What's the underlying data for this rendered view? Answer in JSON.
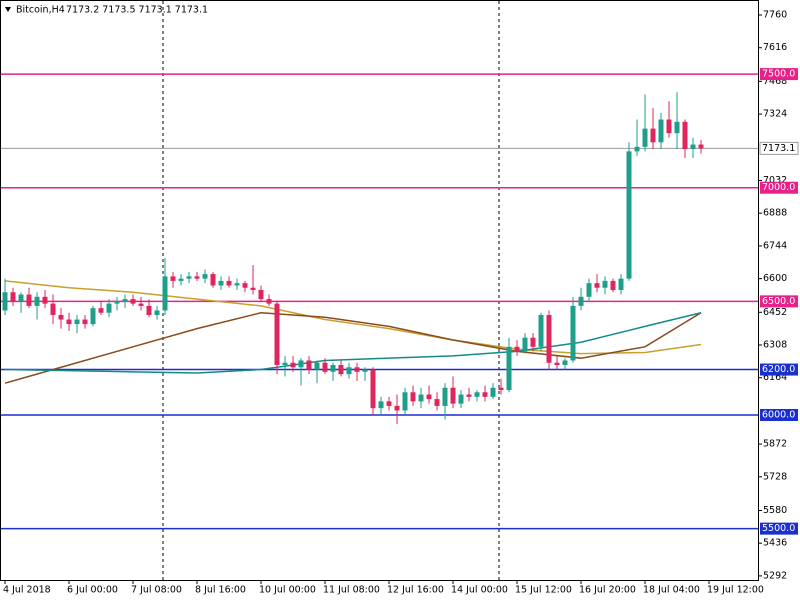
{
  "chart_data": {
    "type": "candlestick",
    "title": "Bitcoin,H4",
    "quote": "7173.2 7173.5 7173.1 7173.1",
    "up_color": "#1f9e8a",
    "down_color": "#e0245e",
    "candles": [
      [
        6460,
        6600,
        6440,
        6540
      ],
      [
        6540,
        6560,
        6480,
        6500
      ],
      [
        6500,
        6540,
        6450,
        6530
      ],
      [
        6530,
        6560,
        6470,
        6480
      ],
      [
        6480,
        6540,
        6420,
        6520
      ],
      [
        6520,
        6550,
        6470,
        6490
      ],
      [
        6490,
        6530,
        6400,
        6440
      ],
      [
        6440,
        6470,
        6380,
        6420
      ],
      [
        6420,
        6450,
        6370,
        6400
      ],
      [
        6400,
        6440,
        6360,
        6420
      ],
      [
        6420,
        6440,
        6380,
        6400
      ],
      [
        6400,
        6480,
        6390,
        6470
      ],
      [
        6470,
        6500,
        6440,
        6450
      ],
      [
        6450,
        6510,
        6430,
        6490
      ],
      [
        6490,
        6520,
        6460,
        6500
      ],
      [
        6500,
        6530,
        6470,
        6510
      ],
      [
        6510,
        6530,
        6480,
        6490
      ],
      [
        6490,
        6520,
        6460,
        6480
      ],
      [
        6480,
        6510,
        6430,
        6440
      ],
      [
        6440,
        6480,
        6420,
        6460
      ],
      [
        6460,
        6690,
        6440,
        6610
      ],
      [
        6610,
        6630,
        6560,
        6590
      ],
      [
        6590,
        6620,
        6570,
        6600
      ],
      [
        6600,
        6630,
        6580,
        6610
      ],
      [
        6610,
        6630,
        6590,
        6600
      ],
      [
        6600,
        6640,
        6580,
        6620
      ],
      [
        6620,
        6630,
        6560,
        6570
      ],
      [
        6570,
        6610,
        6550,
        6590
      ],
      [
        6590,
        6610,
        6560,
        6570
      ],
      [
        6570,
        6600,
        6550,
        6580
      ],
      [
        6580,
        6590,
        6540,
        6560
      ],
      [
        6560,
        6660,
        6530,
        6550
      ],
      [
        6550,
        6570,
        6500,
        6510
      ],
      [
        6510,
        6530,
        6480,
        6490
      ],
      [
        6490,
        6500,
        6180,
        6220
      ],
      [
        6220,
        6260,
        6170,
        6230
      ],
      [
        6230,
        6260,
        6190,
        6210
      ],
      [
        6210,
        6250,
        6130,
        6240
      ],
      [
        6240,
        6260,
        6180,
        6200
      ],
      [
        6200,
        6240,
        6140,
        6230
      ],
      [
        6230,
        6250,
        6180,
        6190
      ],
      [
        6190,
        6230,
        6150,
        6220
      ],
      [
        6220,
        6240,
        6170,
        6180
      ],
      [
        6180,
        6230,
        6160,
        6210
      ],
      [
        6210,
        6230,
        6150,
        6190
      ],
      [
        6190,
        6210,
        6150,
        6200
      ],
      [
        6200,
        6210,
        6000,
        6030
      ],
      [
        6030,
        6080,
        6000,
        6060
      ],
      [
        6060,
        6080,
        6020,
        6040
      ],
      [
        6040,
        6090,
        5960,
        6020
      ],
      [
        6020,
        6120,
        6000,
        6100
      ],
      [
        6100,
        6130,
        6040,
        6060
      ],
      [
        6060,
        6120,
        6030,
        6090
      ],
      [
        6090,
        6130,
        6050,
        6070
      ],
      [
        6070,
        6100,
        6020,
        6040
      ],
      [
        6040,
        6140,
        5980,
        6120
      ],
      [
        6120,
        6170,
        6030,
        6050
      ],
      [
        6050,
        6110,
        6030,
        6090
      ],
      [
        6090,
        6120,
        6060,
        6080
      ],
      [
        6080,
        6110,
        6060,
        6100
      ],
      [
        6100,
        6130,
        6060,
        6080
      ],
      [
        6080,
        6140,
        6070,
        6120
      ],
      [
        6120,
        6160,
        6090,
        6110
      ],
      [
        6110,
        6340,
        6100,
        6300
      ],
      [
        6300,
        6330,
        6260,
        6280
      ],
      [
        6280,
        6360,
        6270,
        6340
      ],
      [
        6340,
        6360,
        6280,
        6300
      ],
      [
        6300,
        6450,
        6280,
        6440
      ],
      [
        6440,
        6460,
        6200,
        6230
      ],
      [
        6230,
        6260,
        6200,
        6220
      ],
      [
        6220,
        6250,
        6200,
        6240
      ],
      [
        6240,
        6520,
        6230,
        6480
      ],
      [
        6480,
        6560,
        6460,
        6520
      ],
      [
        6520,
        6600,
        6500,
        6580
      ],
      [
        6580,
        6620,
        6540,
        6560
      ],
      [
        6560,
        6610,
        6530,
        6590
      ],
      [
        6590,
        6600,
        6540,
        6550
      ],
      [
        6550,
        6620,
        6530,
        6600
      ],
      [
        6600,
        7200,
        6590,
        7160
      ],
      [
        7160,
        7300,
        7140,
        7180
      ],
      [
        7180,
        7410,
        7160,
        7260
      ],
      [
        7260,
        7350,
        7170,
        7200
      ],
      [
        7200,
        7330,
        7170,
        7300
      ],
      [
        7300,
        7380,
        7220,
        7240
      ],
      [
        7240,
        7420,
        7170,
        7290
      ],
      [
        7290,
        7300,
        7130,
        7170
      ],
      [
        7170,
        7220,
        7130,
        7190
      ],
      [
        7190,
        7210,
        7150,
        7173.1
      ]
    ],
    "series": [
      {
        "color": "#c8a030",
        "x": [
          0,
          8,
          16,
          24,
          32,
          40,
          48,
          56,
          64,
          72,
          80,
          87
        ],
        "values": [
          6590,
          6560,
          6540,
          6510,
          6480,
          6420,
          6380,
          6330,
          6290,
          6270,
          6275,
          6310
        ]
      },
      {
        "color": "#8b4a1c",
        "x": [
          0,
          8,
          16,
          24,
          32,
          40,
          48,
          56,
          64,
          72,
          80,
          87
        ],
        "values": [
          6140,
          6220,
          6300,
          6380,
          6450,
          6430,
          6390,
          6330,
          6280,
          6250,
          6300,
          6450
        ]
      },
      {
        "color": "#138a8a",
        "x": [
          0,
          8,
          16,
          24,
          32,
          40,
          48,
          56,
          64,
          72,
          80,
          87
        ],
        "values": [
          6200,
          6195,
          6190,
          6185,
          6200,
          6240,
          6250,
          6260,
          6280,
          6320,
          6390,
          6450
        ]
      }
    ],
    "levels": [
      {
        "value": 7500,
        "label": "7500.0",
        "color": "#e8208a"
      },
      {
        "value": 7000,
        "label": "7000.0",
        "color": "#e8208a"
      },
      {
        "value": 6500,
        "label": "6500.0",
        "color": "#e8208a"
      },
      {
        "value": 6200,
        "label": "6200.0",
        "color": "#1a2fd0"
      },
      {
        "value": 6000,
        "label": "6000.0",
        "color": "#1a2fd0"
      },
      {
        "value": 5500,
        "label": "5500.0",
        "color": "#1a2fd0"
      }
    ],
    "price": 7173.1,
    "ylim": [
      5274,
      7826
    ],
    "yticks": [
      7760,
      7616,
      7468,
      7324,
      7032,
      6888,
      6744,
      6600,
      6452,
      6308,
      6164,
      5872,
      5728,
      5580,
      5436,
      5292
    ],
    "xticks": [
      {
        "value": 0,
        "label": "4 Jul 2018"
      },
      {
        "value": 8,
        "label": "6 Jul 00:00"
      },
      {
        "value": 16,
        "label": "7 Jul 08:00"
      },
      {
        "value": 24,
        "label": "8 Jul 16:00"
      },
      {
        "value": 32,
        "label": "10 Jul 00:00"
      },
      {
        "value": 40,
        "label": "11 Jul 08:00"
      },
      {
        "value": 48,
        "label": "12 Jul 16:00"
      },
      {
        "value": 56,
        "label": "14 Jul 00:00"
      },
      {
        "value": 64,
        "label": "15 Jul 12:00"
      },
      {
        "value": 72,
        "label": "16 Jul 20:00"
      },
      {
        "value": 80,
        "label": "18 Jul 04:00"
      },
      {
        "value": 88,
        "label": "19 Jul 12:00"
      }
    ]
  }
}
